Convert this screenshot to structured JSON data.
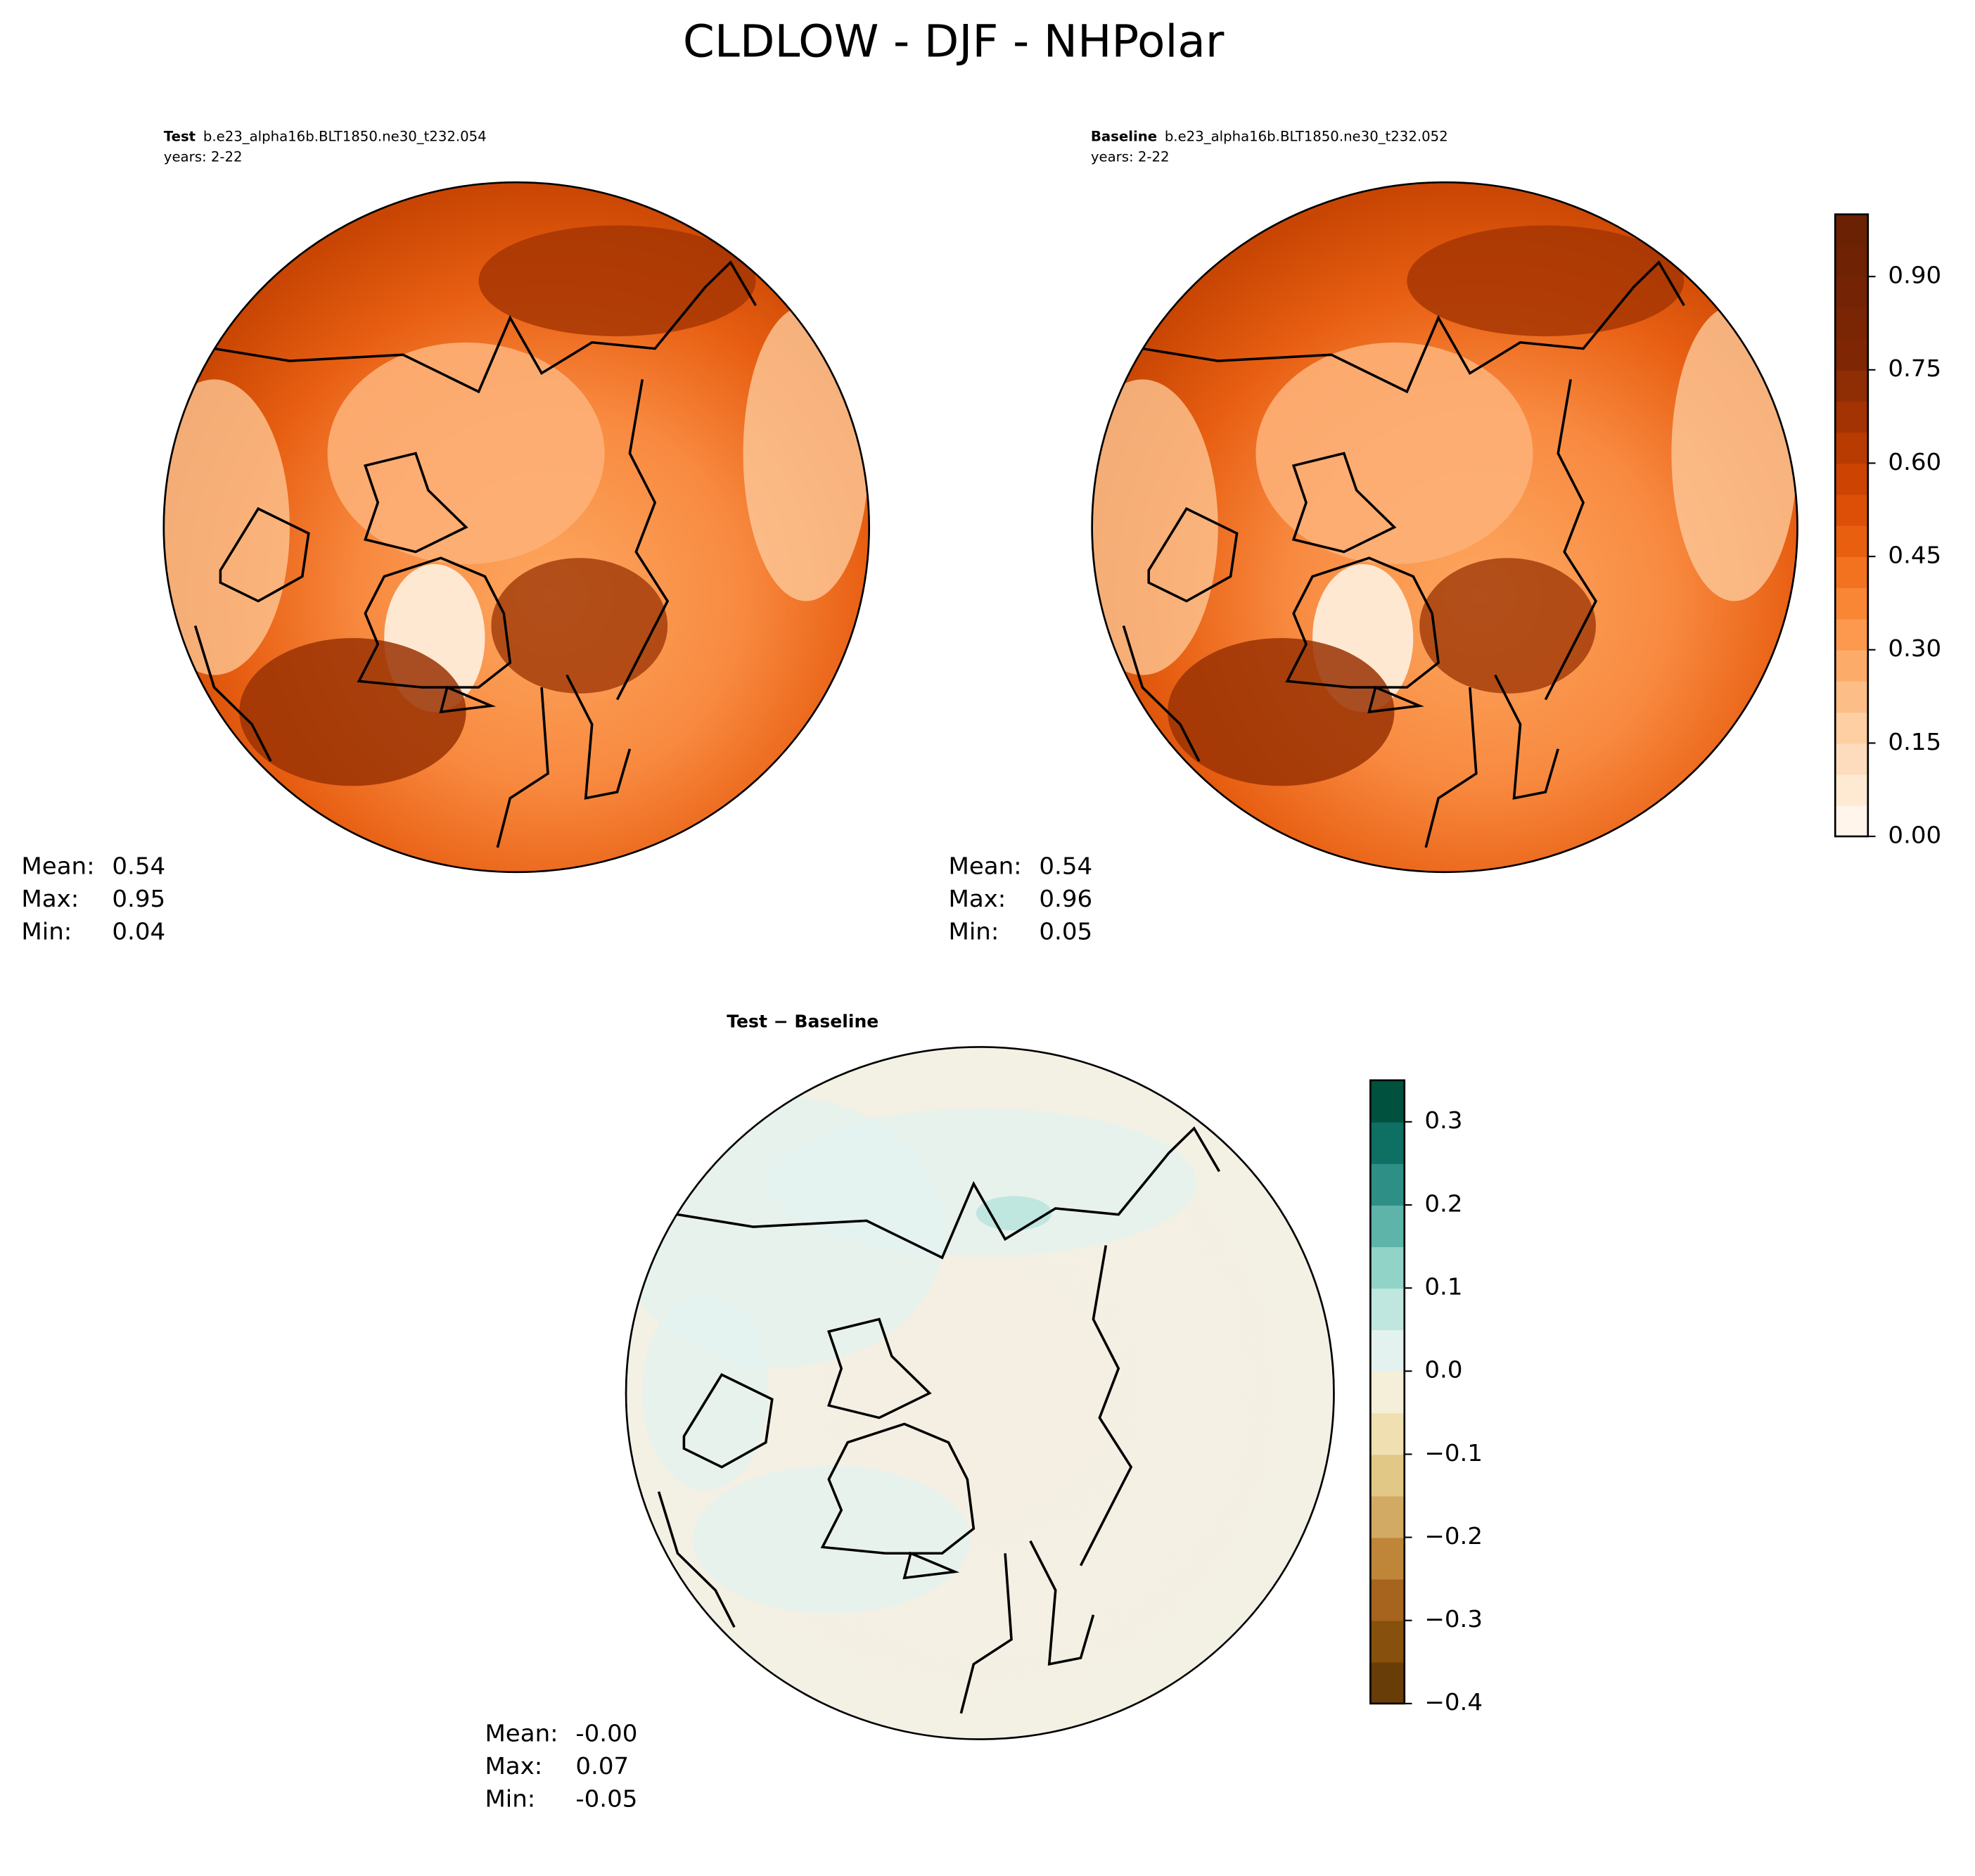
{
  "title": "CLDLOW - DJF - NHPolar",
  "chart_data": [
    {
      "type": "polar-contour",
      "title_label": "Test",
      "title": "b.e23_alpha16b.BLT1850.ne30_t232.054",
      "subtitle": "years: 2-22",
      "stats": [
        {
          "label": "Mean:",
          "value": 0.54
        },
        {
          "label": "Max:",
          "value": 0.95
        },
        {
          "label": "Min:",
          "value": 0.04
        }
      ]
    },
    {
      "type": "polar-contour",
      "title_label": "Baseline",
      "title": "b.e23_alpha16b.BLT1850.ne30_t232.052",
      "subtitle": "years: 2-22",
      "stats": [
        {
          "label": "Mean:",
          "value": 0.54
        },
        {
          "label": "Max:",
          "value": 0.96
        },
        {
          "label": "Min:",
          "value": 0.05
        }
      ],
      "colorbar": {
        "lim": [
          0,
          1
        ],
        "ticks": [
          {
            "value": 0,
            "label": "0.00"
          },
          0.15,
          {
            "value": 0.3,
            "label": "0.30"
          },
          0.45,
          {
            "value": 0.6,
            "label": "0.60"
          },
          0.75,
          {
            "value": 0.9,
            "label": "0.90"
          }
        ],
        "colors": [
          "#fff5eb",
          "#fee9d3",
          "#fddcbd",
          "#fdcfa3",
          "#fdbd86",
          "#fdab69",
          "#fd994e",
          "#f88634",
          "#f3721f",
          "#e95f10",
          "#dd4f07",
          "#cc4302",
          "#b83b02",
          "#a33302",
          "#8f2d04",
          "#7f2704",
          "#7a2504",
          "#742404",
          "#6f2204",
          "#6a2104"
        ]
      }
    },
    {
      "type": "polar-contour",
      "title_label": "Test − Baseline",
      "stats": [
        {
          "label": "Mean:",
          "value": 0,
          "value_label": "-0.00"
        },
        {
          "label": "Max:",
          "value": 0.07
        },
        {
          "label": "Min:",
          "value": -0.05
        }
      ],
      "colorbar": {
        "lim": [
          -0.4,
          0.35
        ],
        "ticks": [
          {
            "value": -0.4,
            "label": "−0.4"
          },
          {
            "value": -0.3,
            "label": "−0.3"
          },
          {
            "value": -0.2,
            "label": "−0.2"
          },
          {
            "value": -0.1,
            "label": "−0.1"
          },
          {
            "value": 0,
            "label": "0.0"
          },
          0.1,
          0.2,
          0.3
        ],
        "colors": [
          "#683d08",
          "#87500c",
          "#a6641f",
          "#bf8538",
          "#d2aa63",
          "#e2c886",
          "#f0dfb0",
          "#f5eed8",
          "#e4f2ef",
          "#bfe6df",
          "#92d3c7",
          "#5eb4a9",
          "#2e8f86",
          "#0e6f63",
          "#01513f"
        ]
      }
    }
  ]
}
